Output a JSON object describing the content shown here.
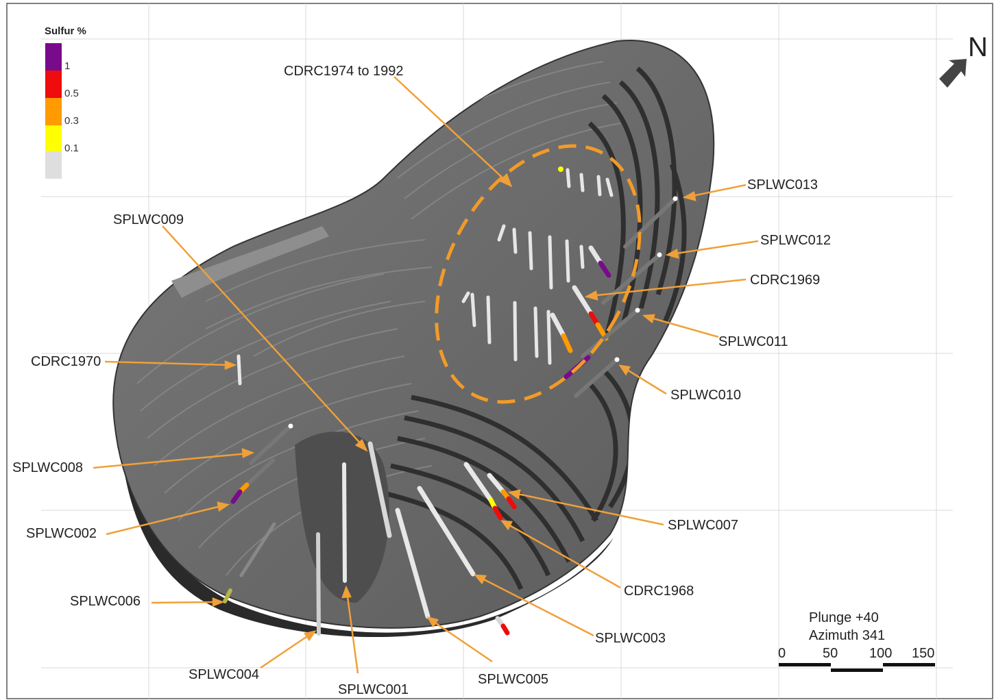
{
  "legend": {
    "title": "Sulfur %",
    "bins": [
      {
        "label": "1",
        "color": "#7a0a8c"
      },
      {
        "label": "0.5",
        "color": "#ee0c0c"
      },
      {
        "label": "0.3",
        "color": "#ff9a00"
      },
      {
        "label": "0.1",
        "color": "#ffff00"
      },
      {
        "label": "",
        "color": "#dedede"
      }
    ]
  },
  "north": {
    "label": "N"
  },
  "view": {
    "plunge": "Plunge +40",
    "azimuth": "Azimuth 341"
  },
  "scalebar": {
    "ticks": [
      "0",
      "50",
      "100",
      "150"
    ]
  },
  "colors": {
    "pit": "#6b6b6b",
    "bench_dark": "#3a3a3a",
    "callout": "#f0a038",
    "dashed": "#f29b28"
  },
  "labels": {
    "CDRC1974_1992": "CDRC1974 to 1992",
    "SPLWC013": "SPLWC013",
    "SPLWC012": "SPLWC012",
    "CDRC1969": "CDRC1969",
    "SPLWC011": "SPLWC011",
    "SPLWC010": "SPLWC010",
    "SPLWC009": "SPLWC009",
    "CDRC1970": "CDRC1970",
    "SPLWC008": "SPLWC008",
    "SPLWC002": "SPLWC002",
    "SPLWC006": "SPLWC006",
    "SPLWC004": "SPLWC004",
    "SPLWC001": "SPLWC001",
    "SPLWC005": "SPLWC005",
    "SPLWC003": "SPLWC003",
    "CDRC1968": "CDRC1968",
    "SPLWC007": "SPLWC007"
  }
}
